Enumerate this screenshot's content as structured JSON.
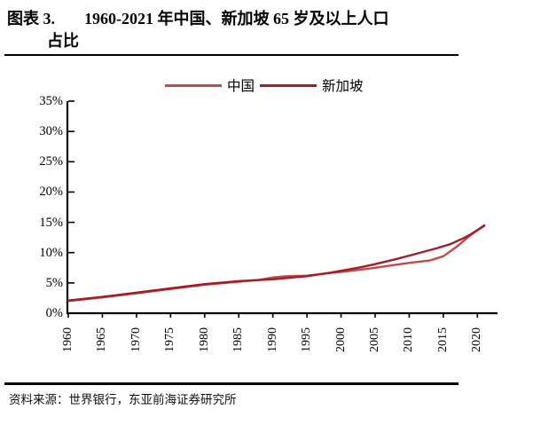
{
  "figure": {
    "title_label": "图表 3.",
    "title_line1": "1960-2021 年中国、新加坡 65 岁及以上人口",
    "title_line2": "占比",
    "source": "资料来源：世界银行，东亚前海证券研究所"
  },
  "chart_data": {
    "type": "line",
    "title": "1960-2021 年中国、新加坡 65 岁及以上人口占比",
    "xlabel": "",
    "ylabel": "",
    "xlim": [
      1960,
      2021.5
    ],
    "ylim": [
      0,
      35
    ],
    "grid": false,
    "legend_position": "top-center",
    "y_ticks": [
      0,
      5,
      10,
      15,
      20,
      25,
      30,
      35
    ],
    "y_tick_labels": [
      "0%",
      "5%",
      "10%",
      "15%",
      "20%",
      "25%",
      "30%",
      "35%"
    ],
    "x_ticks": [
      1960,
      1965,
      1970,
      1975,
      1980,
      1985,
      1990,
      1995,
      2000,
      2005,
      2010,
      2015,
      2020
    ],
    "x_tick_labels": [
      "1960",
      "1965",
      "1970",
      "1975",
      "1980",
      "1985",
      "1990",
      "1995",
      "2000",
      "2005",
      "2010",
      "2015",
      "2020"
    ],
    "axis_color": "#000000",
    "series": [
      {
        "name": "中国",
        "key": "china",
        "color": "#BE4B48",
        "points": [
          [
            1960,
            2.0
          ],
          [
            1965,
            2.6
          ],
          [
            1970,
            3.3
          ],
          [
            1975,
            4.0
          ],
          [
            1980,
            4.7
          ],
          [
            1985,
            5.2
          ],
          [
            1988,
            5.5
          ],
          [
            1990,
            5.9
          ],
          [
            1992,
            6.1
          ],
          [
            1995,
            6.2
          ],
          [
            1998,
            6.6
          ],
          [
            2000,
            6.8
          ],
          [
            2003,
            7.2
          ],
          [
            2005,
            7.5
          ],
          [
            2008,
            8.0
          ],
          [
            2010,
            8.3
          ],
          [
            2013,
            8.7
          ],
          [
            2015,
            9.4
          ],
          [
            2017,
            11.0
          ],
          [
            2019,
            12.9
          ],
          [
            2020,
            13.7
          ],
          [
            2021,
            14.4
          ]
        ]
      },
      {
        "name": "新加坡",
        "key": "singapore",
        "color": "#A01E26",
        "points": [
          [
            1960,
            2.1
          ],
          [
            1965,
            2.7
          ],
          [
            1970,
            3.4
          ],
          [
            1975,
            4.1
          ],
          [
            1980,
            4.8
          ],
          [
            1985,
            5.3
          ],
          [
            1990,
            5.6
          ],
          [
            1993,
            5.9
          ],
          [
            1995,
            6.1
          ],
          [
            1998,
            6.6
          ],
          [
            2000,
            7.0
          ],
          [
            2003,
            7.6
          ],
          [
            2005,
            8.1
          ],
          [
            2008,
            8.9
          ],
          [
            2010,
            9.5
          ],
          [
            2012,
            10.1
          ],
          [
            2014,
            10.7
          ],
          [
            2016,
            11.4
          ],
          [
            2018,
            12.4
          ],
          [
            2019,
            13.0
          ],
          [
            2020,
            13.7
          ],
          [
            2021,
            14.5
          ]
        ]
      }
    ]
  }
}
